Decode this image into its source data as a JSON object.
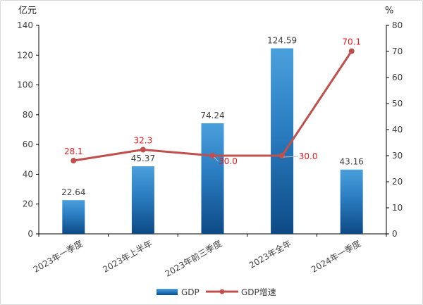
{
  "chart_data": {
    "type": "bar",
    "categories": [
      "2023年一季度",
      "2023年上半年",
      "2023年前三季度",
      "2023年全年",
      "2024年一季度"
    ],
    "series": [
      {
        "name": "GDP",
        "type": "bar",
        "axis": "left",
        "values": [
          22.64,
          45.37,
          74.24,
          124.59,
          43.16
        ],
        "labels": [
          "22.64",
          "45.37",
          "74.24",
          "124.59",
          "43.16"
        ],
        "color": "#2b7fc4"
      },
      {
        "name": "GDP增速",
        "type": "line",
        "axis": "right",
        "values": [
          28.1,
          32.3,
          30.0,
          30.0,
          70.1
        ],
        "labels": [
          "28.1",
          "32.3",
          "30.0",
          "30.0",
          "70.1"
        ],
        "color": "#c0504d"
      }
    ],
    "ylabel_left": "亿元",
    "ylabel_right": "%",
    "ylim_left": [
      0,
      140
    ],
    "ylim_right": [
      0,
      80
    ],
    "yticks_left": [
      "0",
      "20",
      "40",
      "60",
      "80",
      "100",
      "120",
      "140"
    ],
    "yticks_right": [
      "0",
      "10",
      "20",
      "30",
      "40",
      "50",
      "60",
      "70",
      "80"
    ],
    "grid": false,
    "legend_position": "bottom",
    "label_color": "#e6191e"
  }
}
